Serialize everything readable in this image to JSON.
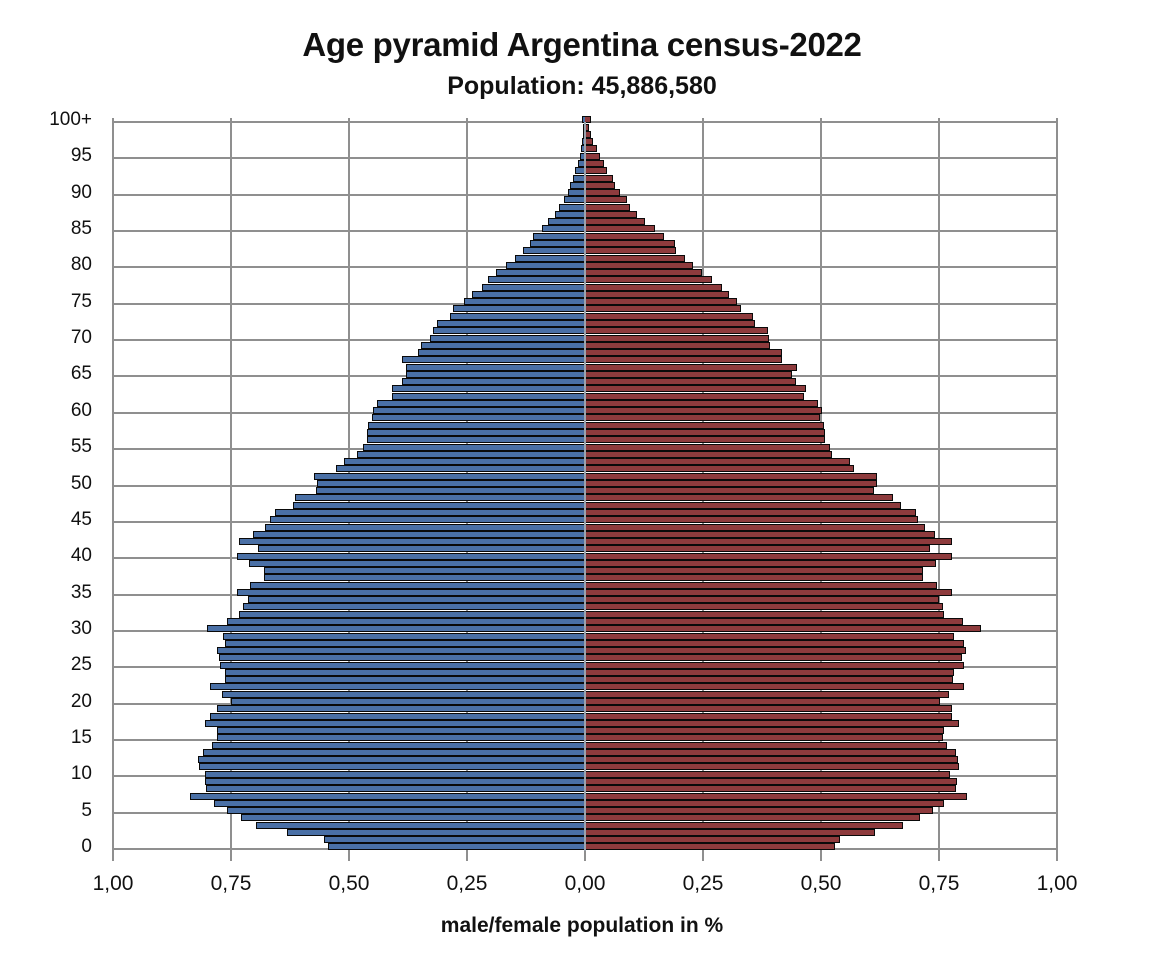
{
  "chart_data": {
    "type": "bar",
    "orientation": "horizontal-population-pyramid",
    "title": "Age pyramid Argentina census-2022",
    "subtitle": "Population: 45,886,580",
    "xlabel": "male/female population  in %",
    "ylabel": "",
    "xlim": [
      -1.0,
      1.0
    ],
    "x_tick_labels": [
      "1,00",
      "0,75",
      "0,50",
      "0,25",
      "0,00",
      "0,25",
      "0,50",
      "0,75",
      "1,00"
    ],
    "x_tick_values": [
      -1.0,
      -0.75,
      -0.5,
      -0.25,
      0.0,
      0.25,
      0.5,
      0.75,
      1.0
    ],
    "y_tick_labels": [
      "0",
      "5",
      "10",
      "15",
      "20",
      "25",
      "30",
      "35",
      "40",
      "45",
      "50",
      "55",
      "60",
      "65",
      "70",
      "75",
      "80",
      "85",
      "90",
      "95",
      "100+"
    ],
    "y_tick_values": [
      0,
      5,
      10,
      15,
      20,
      25,
      30,
      35,
      40,
      45,
      50,
      55,
      60,
      65,
      70,
      75,
      80,
      85,
      90,
      95,
      100
    ],
    "grid": true,
    "legend": null,
    "categories": [
      "0",
      "1",
      "2",
      "3",
      "4",
      "5",
      "6",
      "7",
      "8",
      "9",
      "10",
      "11",
      "12",
      "13",
      "14",
      "15",
      "16",
      "17",
      "18",
      "19",
      "20",
      "21",
      "22",
      "23",
      "24",
      "25",
      "26",
      "27",
      "28",
      "29",
      "30",
      "31",
      "32",
      "33",
      "34",
      "35",
      "36",
      "37",
      "38",
      "39",
      "40",
      "41",
      "42",
      "43",
      "44",
      "45",
      "46",
      "47",
      "48",
      "49",
      "50",
      "51",
      "52",
      "53",
      "54",
      "55",
      "56",
      "57",
      "58",
      "59",
      "60",
      "61",
      "62",
      "63",
      "64",
      "65",
      "66",
      "67",
      "68",
      "69",
      "70",
      "71",
      "72",
      "73",
      "74",
      "75",
      "76",
      "77",
      "78",
      "79",
      "80",
      "81",
      "82",
      "83",
      "84",
      "85",
      "86",
      "87",
      "88",
      "89",
      "90",
      "91",
      "92",
      "93",
      "94",
      "95",
      "96",
      "97",
      "98",
      "99",
      "100+"
    ],
    "series": [
      {
        "name": "male",
        "side": "left",
        "color": "#4a70a6",
        "values": [
          0.545,
          0.553,
          0.631,
          0.697,
          0.729,
          0.758,
          0.786,
          0.837,
          0.803,
          0.805,
          0.805,
          0.818,
          0.82,
          0.809,
          0.79,
          0.78,
          0.78,
          0.805,
          0.794,
          0.78,
          0.75,
          0.769,
          0.794,
          0.763,
          0.763,
          0.773,
          0.775,
          0.78,
          0.763,
          0.767,
          0.801,
          0.758,
          0.733,
          0.725,
          0.714,
          0.737,
          0.71,
          0.68,
          0.68,
          0.712,
          0.737,
          0.693,
          0.733,
          0.703,
          0.678,
          0.667,
          0.657,
          0.619,
          0.614,
          0.57,
          0.568,
          0.574,
          0.528,
          0.511,
          0.483,
          0.47,
          0.462,
          0.462,
          0.46,
          0.451,
          0.449,
          0.441,
          0.409,
          0.409,
          0.388,
          0.379,
          0.379,
          0.388,
          0.354,
          0.347,
          0.328,
          0.322,
          0.314,
          0.286,
          0.28,
          0.256,
          0.239,
          0.218,
          0.206,
          0.189,
          0.167,
          0.148,
          0.131,
          0.117,
          0.11,
          0.091,
          0.078,
          0.064,
          0.055,
          0.044,
          0.036,
          0.032,
          0.025,
          0.021,
          0.015,
          0.011,
          0.008,
          0.006,
          0.004,
          0.004,
          0.006
        ]
      },
      {
        "name": "female",
        "side": "right",
        "color": "#8e3b3d",
        "values": [
          0.53,
          0.54,
          0.614,
          0.674,
          0.71,
          0.737,
          0.761,
          0.809,
          0.786,
          0.788,
          0.773,
          0.792,
          0.79,
          0.786,
          0.767,
          0.758,
          0.761,
          0.792,
          0.778,
          0.778,
          0.752,
          0.771,
          0.803,
          0.78,
          0.782,
          0.803,
          0.799,
          0.807,
          0.803,
          0.782,
          0.839,
          0.801,
          0.761,
          0.758,
          0.75,
          0.778,
          0.746,
          0.716,
          0.716,
          0.744,
          0.778,
          0.731,
          0.778,
          0.742,
          0.72,
          0.706,
          0.701,
          0.669,
          0.653,
          0.612,
          0.619,
          0.619,
          0.57,
          0.561,
          0.523,
          0.519,
          0.508,
          0.508,
          0.506,
          0.498,
          0.502,
          0.494,
          0.464,
          0.468,
          0.447,
          0.439,
          0.449,
          0.417,
          0.417,
          0.392,
          0.39,
          0.388,
          0.36,
          0.356,
          0.331,
          0.322,
          0.305,
          0.29,
          0.269,
          0.248,
          0.229,
          0.212,
          0.193,
          0.191,
          0.167,
          0.148,
          0.127,
          0.11,
          0.095,
          0.089,
          0.074,
          0.064,
          0.059,
          0.047,
          0.04,
          0.032,
          0.025,
          0.017,
          0.013,
          0.008,
          0.013
        ]
      }
    ],
    "colors": {
      "male": "#4a70a6",
      "female": "#8e3b3d",
      "grid": "#8f8f8f",
      "bar_outline": "#0a0a0a"
    }
  }
}
